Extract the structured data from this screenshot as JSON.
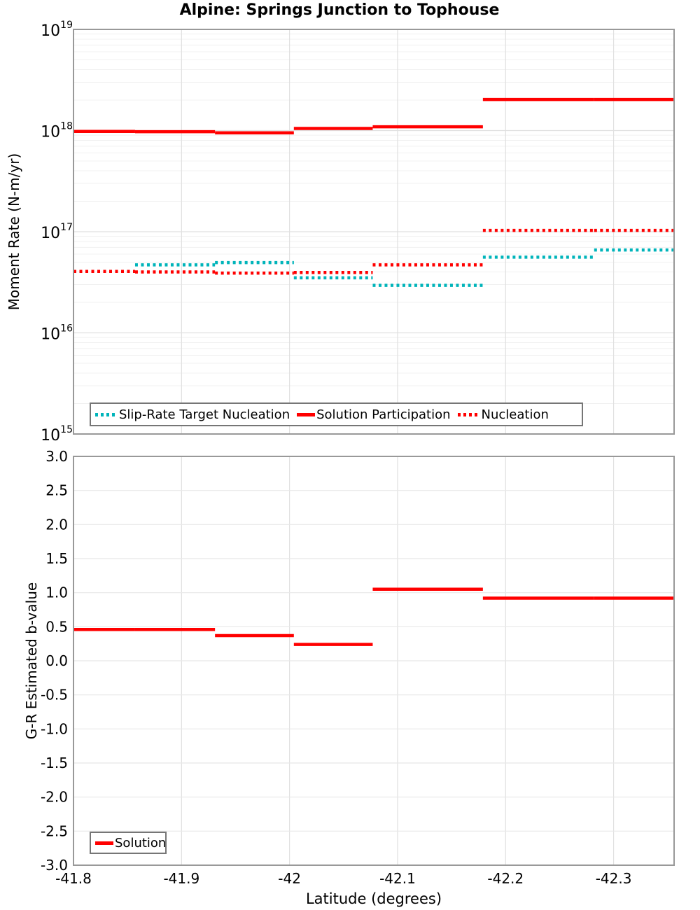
{
  "figure_title": "Alpine: Springs Junction to Tophouse",
  "colors": {
    "solution_red": "#ff0000",
    "slip_rate_cyan": "#00b4ba",
    "grid_major": "#e0e0e0",
    "grid_minor": "#f0f0f0",
    "plot_border": "#999999",
    "text": "#000000"
  },
  "chart_data": [
    {
      "type": "line",
      "subtype": "step-segments",
      "title": "Alpine: Springs Junction to Tophouse",
      "ylabel": "Moment Rate (N-m/yr)",
      "yscale": "log",
      "ylim": [
        1000000000000000.0,
        1e+19
      ],
      "ytick_exponents": [
        19,
        18,
        17,
        16,
        15
      ],
      "ytick_base": "10",
      "xlim": [
        -41.8,
        -42.356
      ],
      "x_axis_inverted": true,
      "grid": true,
      "legend_position": "bottom-left",
      "segment_boundaries": [
        -41.8,
        -41.857,
        -41.931,
        -42.004,
        -42.077,
        -42.179,
        -42.282,
        -42.356
      ],
      "series": [
        {
          "name": "Slip-Rate Target Nucleation",
          "style": "dotted",
          "color": "#00b4ba",
          "values": [
            null,
            4.7e+16,
            4.95e+16,
            3.5e+16,
            2.95e+16,
            5.6e+16,
            6.6e+16
          ]
        },
        {
          "name": "Solution Participation",
          "style": "solid",
          "color": "#ff0000",
          "values": [
            9.8e+17,
            9.75e+17,
            9.5e+17,
            1.05e+18,
            1.09e+18,
            2.03e+18,
            2.03e+18
          ]
        },
        {
          "name": "Nucleation",
          "style": "dotted",
          "color": "#ff0000",
          "values": [
            4.05e+16,
            4e+16,
            3.9e+16,
            3.95e+16,
            4.7e+16,
            1.03e+17,
            1.03e+17
          ]
        }
      ]
    },
    {
      "type": "line",
      "subtype": "step-segments",
      "ylabel": "G-R Estimated b-value",
      "xlabel": "Latitude (degrees)",
      "yscale": "linear",
      "ylim": [
        -3.0,
        3.0
      ],
      "ytick_step": 0.5,
      "ytick_labels": [
        "3.0",
        "2.5",
        "2.0",
        "1.5",
        "1.0",
        "0.5",
        "0.0",
        "-0.5",
        "-1.0",
        "-1.5",
        "-2.0",
        "-2.5",
        "-3.0"
      ],
      "xlim": [
        -41.8,
        -42.356
      ],
      "x_axis_inverted": true,
      "xticks": [
        -41.8,
        -41.9,
        -42.0,
        -42.1,
        -42.2,
        -42.3
      ],
      "xtick_labels": [
        "-41.8",
        "-41.9",
        "-42",
        "-42.1",
        "-42.2",
        "-42.3"
      ],
      "grid": true,
      "legend_position": "bottom-left",
      "segment_boundaries": [
        -41.8,
        -41.857,
        -41.931,
        -42.004,
        -42.077,
        -42.179,
        -42.282,
        -42.356
      ],
      "series": [
        {
          "name": "Solution",
          "style": "solid",
          "color": "#ff0000",
          "values": [
            0.46,
            0.46,
            0.37,
            0.24,
            1.05,
            0.92,
            0.92
          ]
        }
      ]
    }
  ]
}
